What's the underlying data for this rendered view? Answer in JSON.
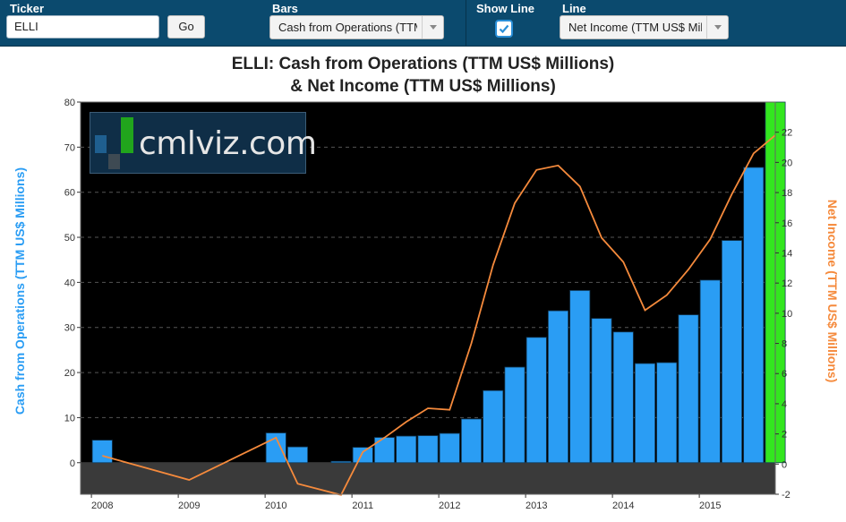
{
  "toolbar": {
    "ticker_label": "Ticker",
    "ticker_value": "ELLI",
    "go_label": "Go",
    "bars_label": "Bars",
    "bars_selected": "Cash from Operations (TTM US$ Millions)",
    "show_line_label": "Show Line",
    "show_line_checked": true,
    "line_label": "Line",
    "line_selected": "Net Income (TTM US$ Millions)"
  },
  "logo": {
    "text": "cmlviz.com"
  },
  "colors": {
    "toolbar_bg": "#0b4a6e",
    "bar": "#2a9df4",
    "highlight_bar": "#33e61f",
    "line": "#f58a3c",
    "plot_bg": "#000000",
    "negative_band": "#3a3a3a"
  },
  "chart_data": {
    "type": "bar",
    "title_line1": "ELLI: Cash from Operations (TTM US$ Millions)",
    "title_line2": "& Net Income (TTM US$ Millions)",
    "ylabel": "Cash from Operations (TTM US$ Millions)",
    "y2label": "Net Income (TTM US$ Millions)",
    "ylim": [
      -7,
      80
    ],
    "y2lim": [
      -2,
      24
    ],
    "yticks": [
      0,
      10,
      20,
      30,
      40,
      50,
      60,
      70,
      80
    ],
    "y2ticks": [
      -2,
      0,
      2,
      4,
      6,
      8,
      10,
      12,
      14,
      16,
      18,
      20,
      22
    ],
    "xlim": [
      2007.875,
      2015.875
    ],
    "xticks": [
      2008,
      2009,
      2010,
      2011,
      2012,
      2013,
      2014,
      2015
    ],
    "xtick_labels": [
      "2008",
      "2009",
      "2010",
      "2011",
      "2012",
      "2013",
      "2014",
      "2015"
    ],
    "grid": "dashed horizontal",
    "series": [
      {
        "name": "Cash from Operations (TTM US$ Millions)",
        "kind": "bar",
        "x": [
          2008.0,
          2010.0,
          2010.25,
          2010.75,
          2011.0,
          2011.25,
          2011.5,
          2011.75,
          2012.0,
          2012.25,
          2012.5,
          2012.75,
          2013.0,
          2013.25,
          2013.5,
          2013.75,
          2014.0,
          2014.25,
          2014.5,
          2014.75,
          2015.0,
          2015.25,
          2015.5,
          2015.75
        ],
        "values": [
          5.0,
          6.6,
          3.5,
          0.3,
          3.4,
          5.6,
          5.9,
          6.0,
          6.5,
          9.7,
          16.0,
          21.2,
          27.8,
          33.7,
          38.2,
          32.0,
          29.0,
          22.0,
          22.2,
          32.8,
          40.5,
          49.3,
          65.5,
          80.0
        ],
        "highlight": [
          false,
          false,
          false,
          false,
          false,
          false,
          false,
          false,
          false,
          false,
          false,
          false,
          false,
          false,
          false,
          false,
          false,
          false,
          false,
          false,
          false,
          false,
          false,
          true
        ]
      },
      {
        "name": "Net Income (TTM US$ Millions)",
        "kind": "line",
        "axis": "right",
        "x": [
          2008.0,
          2009.0,
          2010.0,
          2010.25,
          2010.75,
          2011.0,
          2011.25,
          2011.5,
          2011.75,
          2012.0,
          2012.25,
          2012.5,
          2012.75,
          2013.0,
          2013.25,
          2013.5,
          2013.75,
          2014.0,
          2014.25,
          2014.5,
          2014.75,
          2015.0,
          2015.25,
          2015.5,
          2015.75
        ],
        "values": [
          0.55,
          -1.05,
          1.75,
          -1.3,
          -2.05,
          0.8,
          1.75,
          2.8,
          3.7,
          3.6,
          8.0,
          13.2,
          17.3,
          19.5,
          19.8,
          18.4,
          15.0,
          13.4,
          10.2,
          11.2,
          12.9,
          14.9,
          17.9,
          20.6,
          21.8
        ]
      }
    ]
  }
}
